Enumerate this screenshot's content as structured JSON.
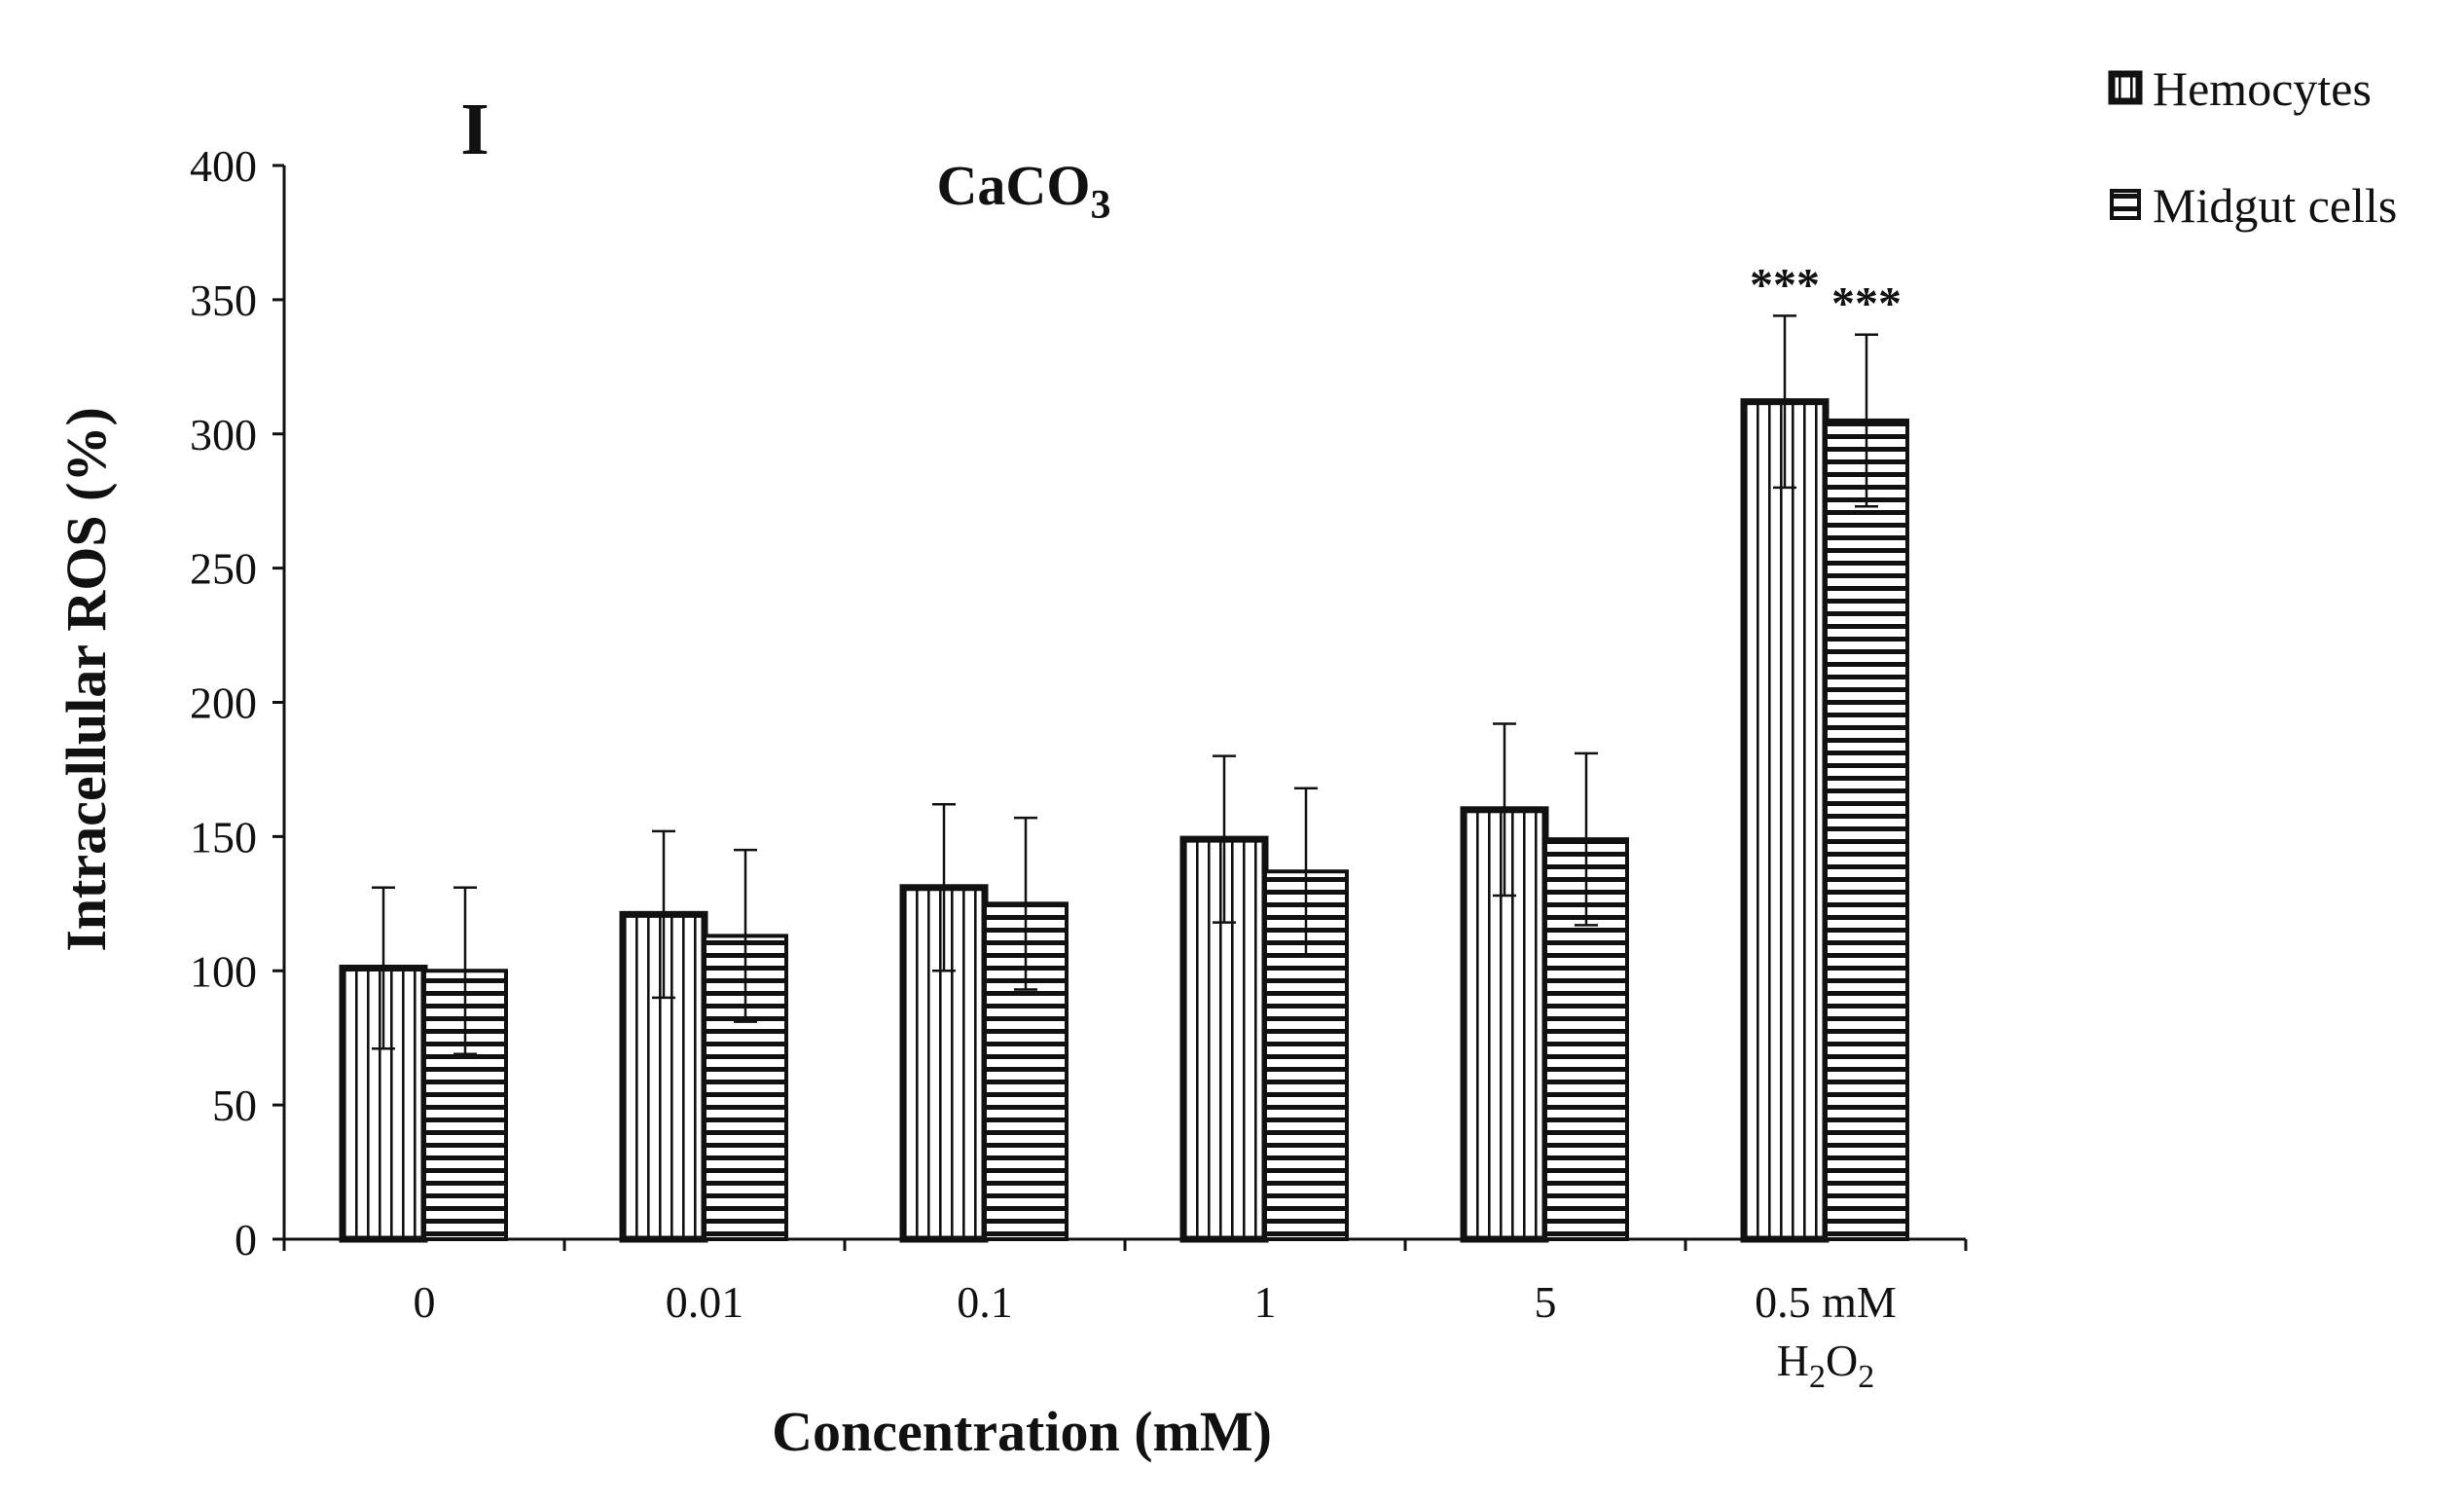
{
  "colors": {
    "ink": "#111111",
    "background": "#ffffff"
  },
  "chart_data": {
    "type": "bar",
    "panel_label": "I",
    "title": "CaCO3",
    "title_main": "CaCO",
    "title_subscript": "3",
    "xlabel": "Concentration (mM)",
    "ylabel": "Intracellular ROS (%)",
    "ylim": [
      0,
      400
    ],
    "yticks": [
      0,
      50,
      100,
      150,
      200,
      250,
      300,
      350,
      400
    ],
    "categories": [
      "0",
      "0.01",
      "0.1",
      "1",
      "5",
      "0.5 mM H2O2"
    ],
    "category_labels": [
      {
        "line1": "0"
      },
      {
        "line1": "0.01"
      },
      {
        "line1": "0.1"
      },
      {
        "line1": "1"
      },
      {
        "line1": "5"
      },
      {
        "line1": "0.5 mM",
        "line2_main1": "H",
        "line2_sub1": "2",
        "line2_main2": "O",
        "line2_sub2": "2"
      }
    ],
    "series": [
      {
        "name": "Hemocytes",
        "pattern": "vertical-stripes",
        "values": [
          101,
          121,
          131,
          149,
          160,
          312
        ],
        "errors": [
          30,
          31,
          31,
          31,
          32,
          32
        ],
        "significance": [
          "",
          "",
          "",
          "",
          "",
          "***"
        ]
      },
      {
        "name": "Midgut cells",
        "pattern": "horizontal-stripes",
        "values": [
          100,
          113,
          125,
          137,
          149,
          305
        ],
        "errors": [
          31,
          32,
          32,
          31,
          32,
          32
        ],
        "significance": [
          "",
          "",
          "",
          "",
          "",
          "***"
        ]
      }
    ],
    "legend_position": "top-right",
    "grid": false
  }
}
